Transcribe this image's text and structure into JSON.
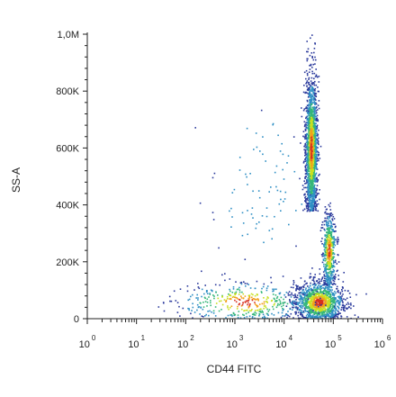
{
  "chart_data": {
    "type": "scatter",
    "style": "density-colored dot plot (flow cytometry)",
    "xlabel": "CD44 FITC",
    "ylabel": "SS-A",
    "x_scale": "log",
    "xlim": [
      1,
      1000000
    ],
    "x_ticks": [
      {
        "base": "10",
        "exp": "0",
        "value": 1
      },
      {
        "base": "10",
        "exp": "1",
        "value": 10
      },
      {
        "base": "10",
        "exp": "2",
        "value": 100
      },
      {
        "base": "10",
        "exp": "3",
        "value": 1000
      },
      {
        "base": "10",
        "exp": "4",
        "value": 10000
      },
      {
        "base": "10",
        "exp": "5",
        "value": 100000
      },
      {
        "base": "10",
        "exp": "6",
        "value": 1000000
      }
    ],
    "ylim": [
      0,
      1000000
    ],
    "y_ticks": [
      {
        "label": "0",
        "value": 0
      },
      {
        "label": "200K",
        "value": 200000
      },
      {
        "label": "400K",
        "value": 400000
      },
      {
        "label": "600K",
        "value": 600000
      },
      {
        "label": "800K",
        "value": 800000
      },
      {
        "label": "1,0M",
        "value": 1000000
      }
    ],
    "grid": false,
    "legend": "none",
    "density_colors": [
      "#2b3a9c",
      "#2f8fc4",
      "#35b779",
      "#c8e020",
      "#f2a01c",
      "#d7301f"
    ],
    "populations": [
      {
        "x_center": 35000,
        "y_center": 600000,
        "x_spread_decades": 0.06,
        "y_range": [
          380000,
          1000000
        ],
        "relative_size": 0.45
      },
      {
        "x_center": 50000,
        "y_center": 60000,
        "x_spread_decades": 0.25,
        "y_range": [
          0,
          180000
        ],
        "relative_size": 0.3
      },
      {
        "x_center": 80000,
        "y_center": 240000,
        "x_spread_decades": 0.07,
        "y_range": [
          120000,
          460000
        ],
        "relative_size": 0.13
      },
      {
        "x_center": 1500,
        "y_center": 60000,
        "x_spread_decades": 0.7,
        "y_range": [
          0,
          180000
        ],
        "relative_size": 0.1
      },
      {
        "x_center": 3000,
        "y_center": 450000,
        "x_spread_decades": 0.5,
        "y_range": [
          150000,
          850000
        ],
        "relative_size": 0.02
      }
    ]
  }
}
